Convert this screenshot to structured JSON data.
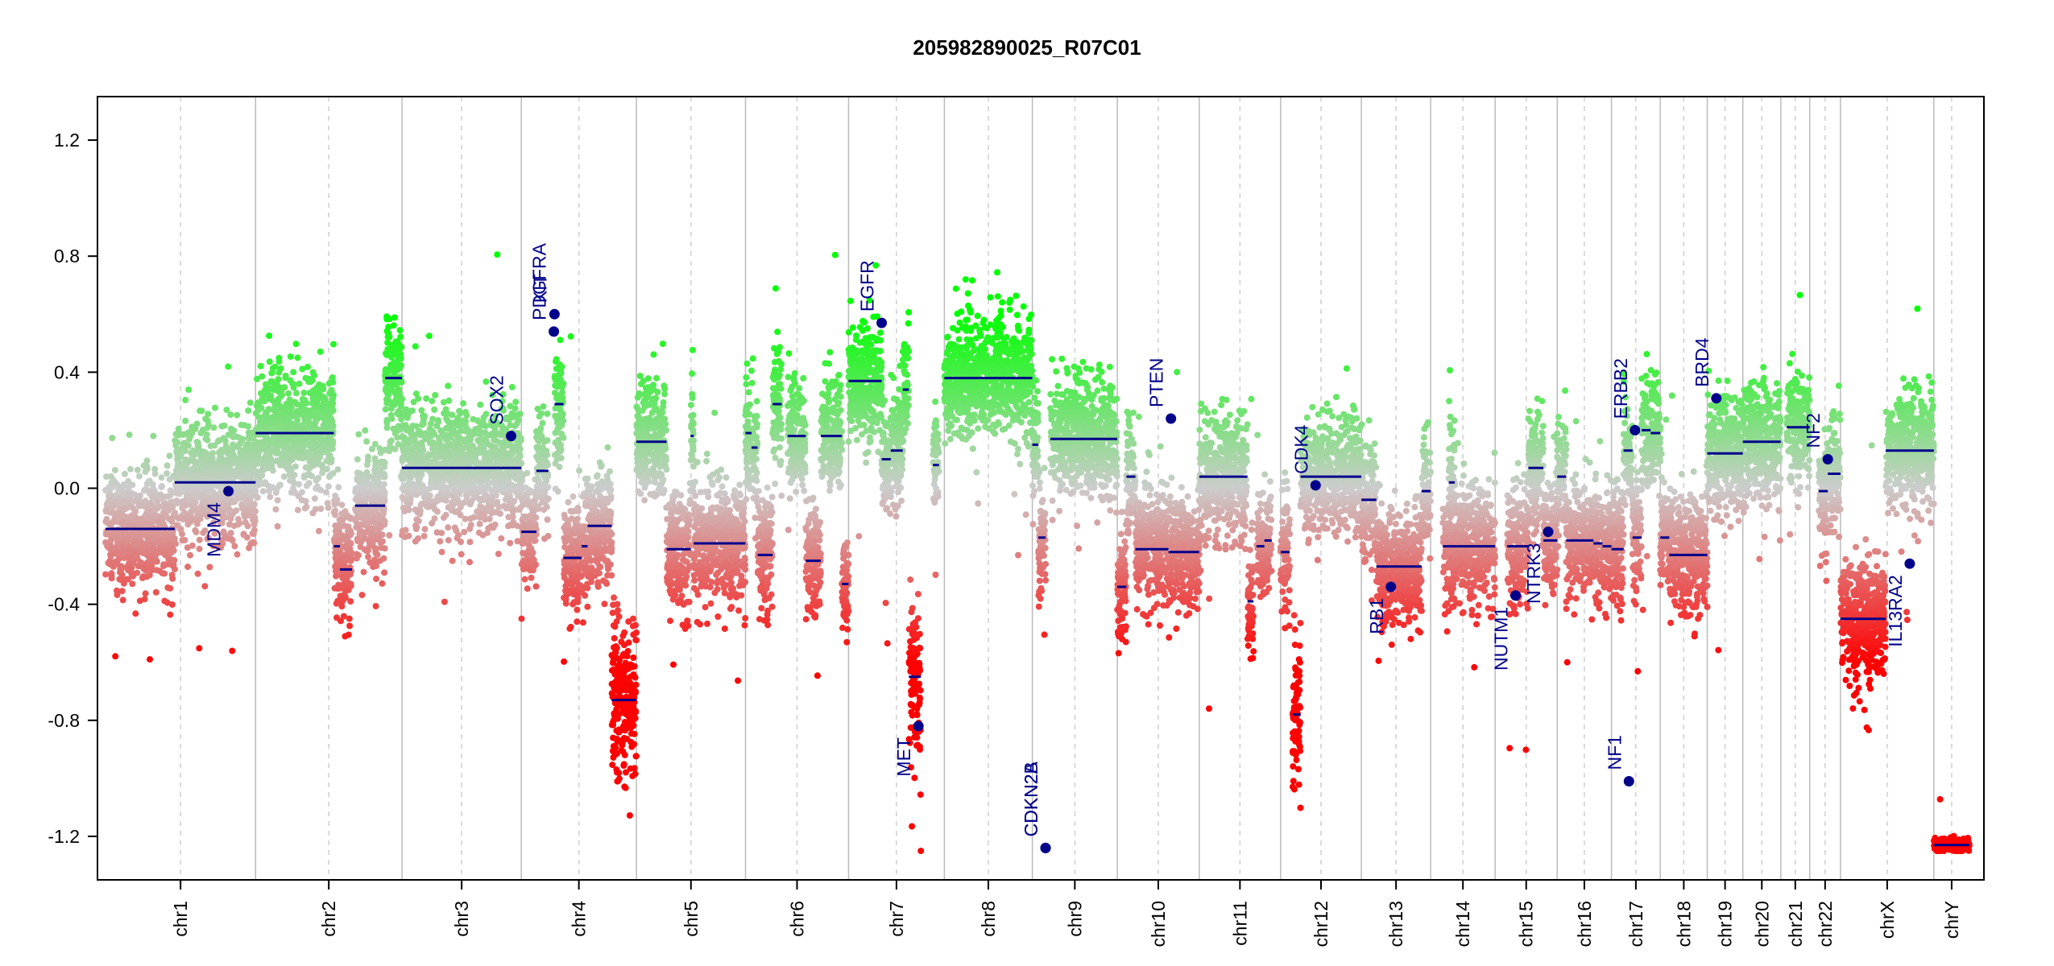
{
  "chart_data": {
    "type": "scatter",
    "title": "205982890025_R07C01",
    "xlabel": "",
    "ylabel": "",
    "ylim": [
      -1.35,
      1.35
    ],
    "y_ticks": [
      -1.2,
      -0.8,
      -0.4,
      0.0,
      0.4,
      0.8,
      1.2
    ],
    "y_tick_labels": [
      "-1.2",
      "-0.8",
      "-0.4",
      "0.0",
      "0.4",
      "0.8",
      "1.2"
    ],
    "grid": false,
    "legend": "none",
    "colors": {
      "gain": "#00ff00",
      "neutral": "#cccccc",
      "loss": "#ff0000",
      "segment": "#00008b",
      "gene_label": "#00008b",
      "chrom_boundary": "#bbbbbb",
      "centromere": "#cfcfcf"
    },
    "chromosomes": [
      {
        "name": "chr1",
        "size": 249
      },
      {
        "name": "chr2",
        "size": 243
      },
      {
        "name": "chr3",
        "size": 198
      },
      {
        "name": "chr4",
        "size": 191
      },
      {
        "name": "chr5",
        "size": 181
      },
      {
        "name": "chr6",
        "size": 171
      },
      {
        "name": "chr7",
        "size": 159
      },
      {
        "name": "chr8",
        "size": 146
      },
      {
        "name": "chr9",
        "size": 141
      },
      {
        "name": "chr10",
        "size": 136
      },
      {
        "name": "chr11",
        "size": 135
      },
      {
        "name": "chr12",
        "size": 134
      },
      {
        "name": "chr13",
        "size": 115
      },
      {
        "name": "chr14",
        "size": 107
      },
      {
        "name": "chr15",
        "size": 103
      },
      {
        "name": "chr16",
        "size": 90
      },
      {
        "name": "chr17",
        "size": 81
      },
      {
        "name": "chr18",
        "size": 78
      },
      {
        "name": "chr19",
        "size": 59
      },
      {
        "name": "chr20",
        "size": 63
      },
      {
        "name": "chr21",
        "size": 48
      },
      {
        "name": "chr22",
        "size": 51
      },
      {
        "name": "chrX",
        "size": 155
      },
      {
        "name": "chrY",
        "size": 59
      }
    ],
    "segments": [
      {
        "chr": "chr1",
        "start": 0,
        "end": 115,
        "value": -0.14
      },
      {
        "chr": "chr1",
        "start": 115,
        "end": 249,
        "value": 0.02
      },
      {
        "chr": "chr2",
        "start": 0,
        "end": 130,
        "value": 0.19
      },
      {
        "chr": "chr2",
        "start": 130,
        "end": 140,
        "value": -0.2
      },
      {
        "chr": "chr2",
        "start": 140,
        "end": 160,
        "value": -0.28
      },
      {
        "chr": "chr2",
        "start": 165,
        "end": 215,
        "value": -0.06
      },
      {
        "chr": "chr2",
        "start": 215,
        "end": 243,
        "value": 0.38
      },
      {
        "chr": "chr3",
        "start": 0,
        "end": 198,
        "value": 0.07
      },
      {
        "chr": "chr4",
        "start": 0,
        "end": 25,
        "value": -0.15
      },
      {
        "chr": "chr4",
        "start": 25,
        "end": 45,
        "value": 0.06
      },
      {
        "chr": "chr4",
        "start": 55,
        "end": 70,
        "value": 0.29
      },
      {
        "chr": "chr4",
        "start": 70,
        "end": 100,
        "value": -0.24
      },
      {
        "chr": "chr4",
        "start": 100,
        "end": 110,
        "value": -0.2
      },
      {
        "chr": "chr4",
        "start": 110,
        "end": 150,
        "value": -0.13
      },
      {
        "chr": "chr4",
        "start": 150,
        "end": 191,
        "value": -0.73
      },
      {
        "chr": "chr5",
        "start": 0,
        "end": 50,
        "value": 0.16
      },
      {
        "chr": "chr5",
        "start": 50,
        "end": 90,
        "value": -0.21
      },
      {
        "chr": "chr5",
        "start": 90,
        "end": 95,
        "value": 0.18
      },
      {
        "chr": "chr5",
        "start": 95,
        "end": 181,
        "value": -0.19
      },
      {
        "chr": "chr6",
        "start": 0,
        "end": 10,
        "value": 0.19
      },
      {
        "chr": "chr6",
        "start": 10,
        "end": 20,
        "value": 0.14
      },
      {
        "chr": "chr6",
        "start": 20,
        "end": 45,
        "value": -0.23
      },
      {
        "chr": "chr6",
        "start": 45,
        "end": 60,
        "value": 0.29
      },
      {
        "chr": "chr6",
        "start": 70,
        "end": 100,
        "value": 0.18
      },
      {
        "chr": "chr6",
        "start": 100,
        "end": 125,
        "value": -0.25
      },
      {
        "chr": "chr6",
        "start": 125,
        "end": 160,
        "value": 0.18
      },
      {
        "chr": "chr6",
        "start": 160,
        "end": 171,
        "value": -0.33
      },
      {
        "chr": "chr7",
        "start": 0,
        "end": 55,
        "value": 0.37
      },
      {
        "chr": "chr7",
        "start": 55,
        "end": 70,
        "value": 0.1
      },
      {
        "chr": "chr7",
        "start": 70,
        "end": 90,
        "value": 0.13
      },
      {
        "chr": "chr7",
        "start": 90,
        "end": 100,
        "value": 0.34
      },
      {
        "chr": "chr7",
        "start": 100,
        "end": 120,
        "value": -0.65
      },
      {
        "chr": "chr7",
        "start": 140,
        "end": 150,
        "value": 0.08
      },
      {
        "chr": "chr8",
        "start": 0,
        "end": 146,
        "value": 0.38
      },
      {
        "chr": "chr9",
        "start": 0,
        "end": 10,
        "value": 0.15
      },
      {
        "chr": "chr9",
        "start": 10,
        "end": 22,
        "value": -0.17
      },
      {
        "chr": "chr9",
        "start": 30,
        "end": 141,
        "value": 0.17
      },
      {
        "chr": "chr10",
        "start": 0,
        "end": 15,
        "value": -0.34
      },
      {
        "chr": "chr10",
        "start": 15,
        "end": 30,
        "value": 0.04
      },
      {
        "chr": "chr10",
        "start": 30,
        "end": 85,
        "value": -0.21
      },
      {
        "chr": "chr10",
        "start": 85,
        "end": 136,
        "value": -0.22
      },
      {
        "chr": "chr11",
        "start": 0,
        "end": 80,
        "value": 0.04
      },
      {
        "chr": "chr11",
        "start": 80,
        "end": 90,
        "value": -0.39
      },
      {
        "chr": "chr11",
        "start": 95,
        "end": 108,
        "value": -0.2
      },
      {
        "chr": "chr11",
        "start": 108,
        "end": 120,
        "value": -0.18
      },
      {
        "chr": "chr12",
        "start": 0,
        "end": 15,
        "value": -0.22
      },
      {
        "chr": "chr12",
        "start": 20,
        "end": 33,
        "value": -0.78
      },
      {
        "chr": "chr12",
        "start": 33,
        "end": 45,
        "value": 0.04
      },
      {
        "chr": "chr12",
        "start": 45,
        "end": 134,
        "value": 0.04
      },
      {
        "chr": "chr13",
        "start": 0,
        "end": 25,
        "value": -0.04
      },
      {
        "chr": "chr13",
        "start": 25,
        "end": 100,
        "value": -0.27
      },
      {
        "chr": "chr13",
        "start": 100,
        "end": 115,
        "value": -0.01
      },
      {
        "chr": "chr14",
        "start": 20,
        "end": 45,
        "value": -0.2
      },
      {
        "chr": "chr14",
        "start": 30,
        "end": 40,
        "value": 0.02
      },
      {
        "chr": "chr14",
        "start": 45,
        "end": 107,
        "value": -0.2
      },
      {
        "chr": "chr15",
        "start": 20,
        "end": 55,
        "value": -0.2
      },
      {
        "chr": "chr15",
        "start": 55,
        "end": 80,
        "value": 0.07
      },
      {
        "chr": "chr15",
        "start": 80,
        "end": 103,
        "value": -0.18
      },
      {
        "chr": "chr16",
        "start": 0,
        "end": 15,
        "value": 0.04
      },
      {
        "chr": "chr16",
        "start": 15,
        "end": 60,
        "value": -0.18
      },
      {
        "chr": "chr16",
        "start": 60,
        "end": 75,
        "value": -0.19
      },
      {
        "chr": "chr16",
        "start": 75,
        "end": 90,
        "value": -0.2
      },
      {
        "chr": "chr17",
        "start": 0,
        "end": 20,
        "value": -0.21
      },
      {
        "chr": "chr17",
        "start": 20,
        "end": 35,
        "value": 0.13
      },
      {
        "chr": "chr17",
        "start": 35,
        "end": 50,
        "value": -0.17
      },
      {
        "chr": "chr17",
        "start": 50,
        "end": 65,
        "value": 0.2
      },
      {
        "chr": "chr17",
        "start": 65,
        "end": 81,
        "value": 0.19
      },
      {
        "chr": "chr18",
        "start": 0,
        "end": 15,
        "value": -0.17
      },
      {
        "chr": "chr18",
        "start": 15,
        "end": 78,
        "value": -0.23
      },
      {
        "chr": "chr19",
        "start": 0,
        "end": 59,
        "value": 0.12
      },
      {
        "chr": "chr20",
        "start": 0,
        "end": 63,
        "value": 0.16
      },
      {
        "chr": "chr21",
        "start": 10,
        "end": 48,
        "value": 0.21
      },
      {
        "chr": "chr22",
        "start": 15,
        "end": 30,
        "value": -0.01
      },
      {
        "chr": "chr22",
        "start": 30,
        "end": 51,
        "value": 0.05
      },
      {
        "chr": "chrX",
        "start": 0,
        "end": 75,
        "value": -0.45
      },
      {
        "chr": "chrX",
        "start": 75,
        "end": 155,
        "value": 0.13
      },
      {
        "chr": "chrY",
        "start": 0,
        "end": 59,
        "value": -1.23
      }
    ],
    "genes": [
      {
        "name": "MDM4",
        "chr": "chr1",
        "pos": 204,
        "value": -0.01,
        "label_side": "below"
      },
      {
        "name": "SOX2",
        "chr": "chr3",
        "pos": 181,
        "value": 0.18,
        "label_side": "above"
      },
      {
        "name": "KIT",
        "chr": "chr4",
        "pos": 55,
        "value": 0.6,
        "label_side": "above"
      },
      {
        "name": "PDGFRA",
        "chr": "chr4",
        "pos": 54,
        "value": 0.54,
        "label_side": "above"
      },
      {
        "name": "EGFR",
        "chr": "chr7",
        "pos": 55,
        "value": 0.57,
        "label_side": "above"
      },
      {
        "name": "MET",
        "chr": "chr7",
        "pos": 116,
        "value": -0.82,
        "label_side": "below"
      },
      {
        "name": "CDKN2A",
        "chr": "chr9",
        "pos": 21.9,
        "value": -1.24,
        "label_side": "above"
      },
      {
        "name": "CDKN2B",
        "chr": "chr9",
        "pos": 22.0,
        "value": -1.24,
        "label_side": "above"
      },
      {
        "name": "PTEN",
        "chr": "chr10",
        "pos": 89,
        "value": 0.24,
        "label_side": "above"
      },
      {
        "name": "CDK4",
        "chr": "chr12",
        "pos": 58,
        "value": 0.01,
        "label_side": "above"
      },
      {
        "name": "RB1",
        "chr": "chr13",
        "pos": 49,
        "value": -0.34,
        "label_side": "below"
      },
      {
        "name": "NUTM1",
        "chr": "chr15",
        "pos": 34,
        "value": -0.37,
        "label_side": "below"
      },
      {
        "name": "NTRK3",
        "chr": "chr15",
        "pos": 88,
        "value": -0.15,
        "label_side": "below"
      },
      {
        "name": "NF1",
        "chr": "chr17",
        "pos": 29,
        "value": -1.01,
        "label_side": "above"
      },
      {
        "name": "ERBB2",
        "chr": "chr17",
        "pos": 39,
        "value": 0.2,
        "label_side": "above"
      },
      {
        "name": "BRD4",
        "chr": "chr19",
        "pos": 15,
        "value": 0.31,
        "label_side": "above"
      },
      {
        "name": "NF2",
        "chr": "chr22",
        "pos": 30,
        "value": 0.1,
        "label_side": "above"
      },
      {
        "name": "IL13RA2",
        "chrX": true,
        "chr": "chrX",
        "pos": 115,
        "value": -0.26,
        "label_side": "below"
      }
    ]
  }
}
